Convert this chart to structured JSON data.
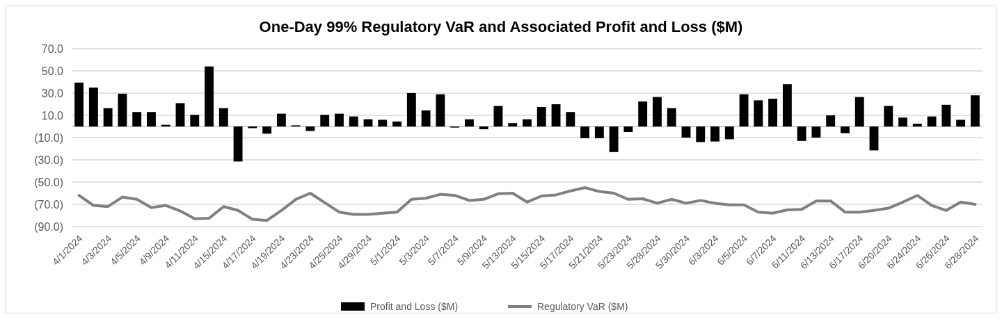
{
  "chart_data": {
    "type": "bar",
    "title": "One-Day 99% Regulatory VaR and Associated Profit and Loss ($M)",
    "categories": [
      "4/1/2024",
      null,
      "4/3/2024",
      null,
      "4/5/2024",
      null,
      "4/9/2024",
      null,
      "4/11/2024",
      null,
      "4/15/2024",
      null,
      "4/17/2024",
      null,
      "4/19/2024",
      null,
      "4/23/2024",
      null,
      "4/25/2024",
      null,
      "4/29/2024",
      null,
      "5/1/2024",
      null,
      "5/3/2024",
      null,
      "5/7/2024",
      null,
      "5/9/2024",
      null,
      "5/13/2024",
      null,
      "5/15/2024",
      null,
      "5/17/2024",
      null,
      "5/21/2024",
      null,
      "5/23/2024",
      null,
      "5/28/2024",
      null,
      "5/30/2024",
      null,
      "6/3/2024",
      null,
      "6/5/2024",
      null,
      "6/7/2024",
      null,
      "6/11/2024",
      null,
      "6/13/2024",
      null,
      "6/17/2024",
      null,
      "6/20/2024",
      null,
      "6/24/2024",
      null,
      "6/26/2024",
      null,
      "6/28/2024"
    ],
    "series": [
      {
        "name": "Profit and Loss ($M)",
        "color": "#000000",
        "values": [
          39.5,
          35,
          16.5,
          29.5,
          13,
          13,
          1.5,
          21,
          10.5,
          54,
          16.5,
          -31.5,
          -1.5,
          -6.5,
          11.5,
          1,
          -4,
          10.5,
          11.5,
          9,
          6.5,
          6,
          4.5,
          30,
          14.5,
          29,
          -1,
          6.5,
          -2.5,
          18.5,
          3,
          6.5,
          17.5,
          20,
          13,
          -10.5,
          -10.5,
          -23,
          -5,
          22.5,
          26.5,
          16.5,
          -10,
          -14,
          -13.5,
          -11.5,
          29,
          23.5,
          25,
          38,
          -13,
          -10,
          10,
          -6,
          26.5,
          -21.5,
          18.5,
          8,
          2.5,
          9,
          19.5,
          6,
          28
        ]
      },
      {
        "name": "Regulatory VaR ($M)",
        "type": "line",
        "color": "#808080",
        "values": [
          -62,
          -71,
          -72,
          -63.5,
          -65.5,
          -73,
          -71,
          -76,
          -83,
          -82.5,
          -72,
          -75.5,
          -83.5,
          -84.5,
          -75.5,
          -65.5,
          -60,
          -68.5,
          -77,
          -79,
          -79,
          -78,
          -77,
          -65.5,
          -64.5,
          -61,
          -62,
          -66.5,
          -65.5,
          -60.5,
          -60,
          -68,
          -62.5,
          -61.5,
          -58,
          -55,
          -58.5,
          -60,
          -65.5,
          -65,
          -69,
          -65.5,
          -69,
          -66.5,
          -69,
          -70.5,
          -70.5,
          -77,
          -78,
          -75,
          -74.5,
          -67,
          -67,
          -77,
          -77,
          -75.5,
          -73.5,
          -68,
          -62,
          -71,
          -75.5,
          -68,
          -70
        ]
      }
    ],
    "ylim": [
      -90,
      70
    ],
    "yticks": [
      {
        "value": 70,
        "label": "70.0"
      },
      {
        "value": 50,
        "label": "50.0"
      },
      {
        "value": 30,
        "label": "30.0"
      },
      {
        "value": 10,
        "label": "10.0"
      },
      {
        "value": -10,
        "label": "(10.0)"
      },
      {
        "value": -30,
        "label": "(30.0)"
      },
      {
        "value": -50,
        "label": "(50.0)"
      },
      {
        "value": -70,
        "label": "(70.0)"
      },
      {
        "value": -90,
        "label": "(90.0)"
      }
    ],
    "grid": "y",
    "legend": "bottom"
  }
}
